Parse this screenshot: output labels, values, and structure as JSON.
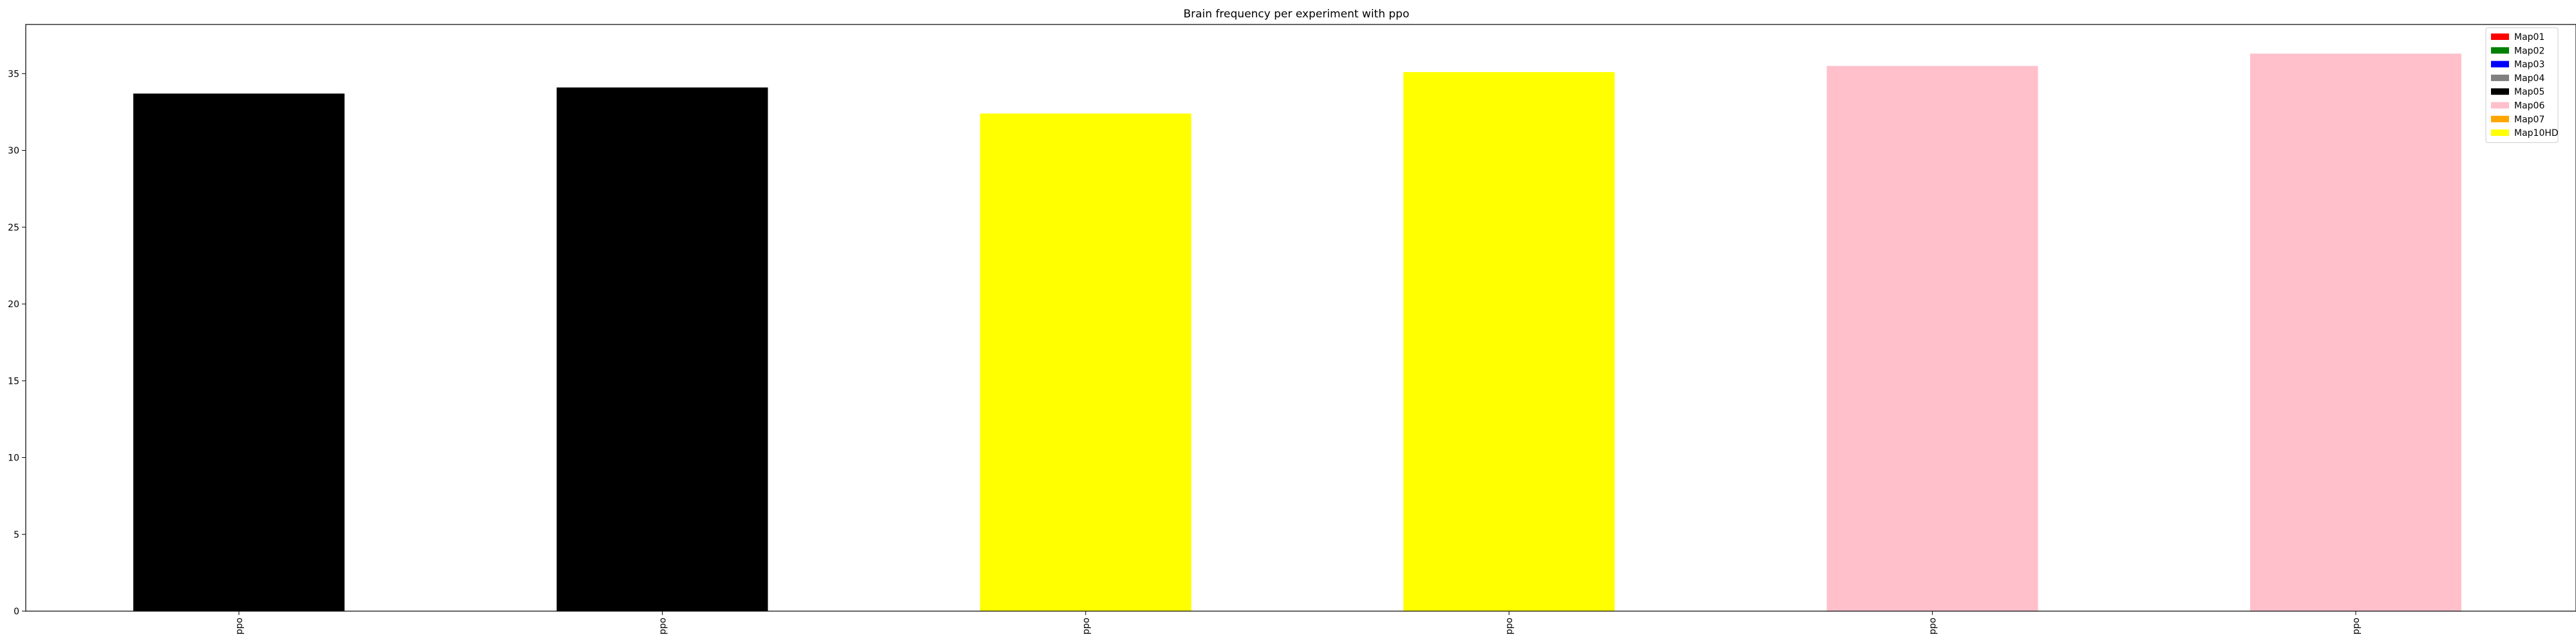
{
  "chart_data": {
    "type": "bar",
    "title": "Brain frequency per experiment with ppo",
    "xlabel": "",
    "ylabel": "",
    "categories": [
      "ppo",
      "ppo",
      "ppo",
      "ppo",
      "ppo",
      "ppo"
    ],
    "values": [
      33.7,
      34.1,
      32.4,
      35.1,
      35.5,
      36.3
    ],
    "bar_colors": [
      "#000000",
      "#000000",
      "#ffff00",
      "#ffff00",
      "#ffc0cb",
      "#ffc0cb"
    ],
    "ylim": [
      0,
      38.2
    ],
    "yticks": [
      0,
      5,
      10,
      15,
      20,
      25,
      30,
      35
    ],
    "grid": false,
    "legend_position": "top-right",
    "legend": [
      {
        "label": "Map01",
        "color": "#ff0000"
      },
      {
        "label": "Map02",
        "color": "#008000"
      },
      {
        "label": "Map03",
        "color": "#0000ff"
      },
      {
        "label": "Map04",
        "color": "#808080"
      },
      {
        "label": "Map05",
        "color": "#000000"
      },
      {
        "label": "Map06",
        "color": "#ffc0cb"
      },
      {
        "label": "Map07",
        "color": "#ffa500"
      },
      {
        "label": "Map10HD",
        "color": "#ffff00"
      }
    ]
  }
}
